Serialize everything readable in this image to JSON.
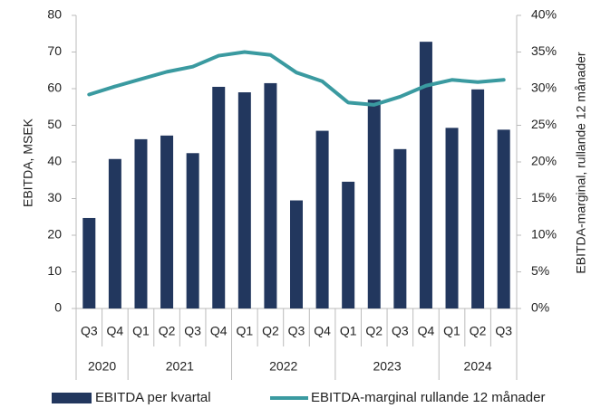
{
  "chart_data": {
    "type": "bar+line",
    "categories": [
      "Q3",
      "Q4",
      "Q1",
      "Q2",
      "Q3",
      "Q4",
      "Q1",
      "Q2",
      "Q3",
      "Q4",
      "Q1",
      "Q2",
      "Q3",
      "Q4",
      "Q1",
      "Q2",
      "Q3"
    ],
    "groups": [
      {
        "label": "2020",
        "count": 2
      },
      {
        "label": "2021",
        "count": 4
      },
      {
        "label": "2022",
        "count": 4
      },
      {
        "label": "2023",
        "count": 4
      },
      {
        "label": "2024",
        "count": 3
      }
    ],
    "ylabel": "EBITDA, MSEK",
    "y2label": "EBITDA-marginal, rullande 12 månader",
    "ylim": [
      0,
      80
    ],
    "yticks": [
      0,
      10,
      20,
      30,
      40,
      50,
      60,
      70,
      80
    ],
    "y2lim": [
      0,
      40
    ],
    "y2ticks": [
      {
        "value": 0,
        "label": "0%"
      },
      {
        "value": 5,
        "label": "5%"
      },
      {
        "value": 10,
        "label": "10%"
      },
      {
        "value": 15,
        "label": "15%"
      },
      {
        "value": 20,
        "label": "20%"
      },
      {
        "value": 25,
        "label": "25%"
      },
      {
        "value": 30,
        "label": "30%"
      },
      {
        "value": 35,
        "label": "35%"
      },
      {
        "value": 40,
        "label": "40%"
      }
    ],
    "series": [
      {
        "name": "EBITDA per kvartal",
        "type": "bar",
        "color": "#22375e",
        "values": [
          24.7,
          40.8,
          46.2,
          47.2,
          42.4,
          60.5,
          59.0,
          61.5,
          29.5,
          48.5,
          34.6,
          57.0,
          43.5,
          72.8,
          49.3,
          59.8,
          48.8
        ]
      },
      {
        "name": "EBITDA-marginal rullande 12 månader",
        "type": "line",
        "axis": "y2",
        "color": "#3a9aa0",
        "values": [
          29.2,
          30.3,
          31.3,
          32.3,
          33.0,
          34.5,
          35.0,
          34.6,
          32.2,
          31.0,
          28.1,
          27.8,
          28.9,
          30.4,
          31.2,
          30.9,
          31.2
        ]
      }
    ]
  }
}
